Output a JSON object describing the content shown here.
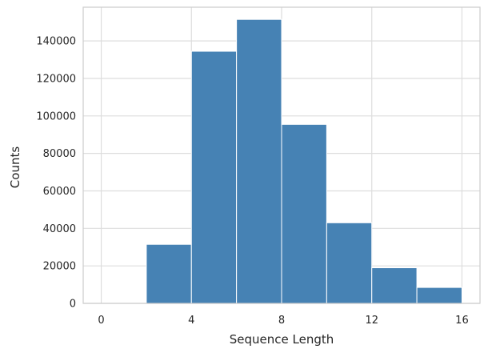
{
  "colors": {
    "bar_fill": "#4682b4",
    "bar_edge": "#ffffff",
    "grid": "#dddddd",
    "frame": "#cccccc",
    "text": "#262626",
    "background": "#ffffff"
  },
  "chart_data": {
    "type": "bar",
    "title": "",
    "xlabel": "Sequence Length",
    "ylabel": "Counts",
    "xlim": [
      -0.8,
      16.8
    ],
    "ylim": [
      0,
      158000
    ],
    "xticks": [
      0,
      4,
      8,
      12,
      16
    ],
    "yticks": [
      0,
      20000,
      40000,
      60000,
      80000,
      100000,
      120000,
      140000
    ],
    "grid": true,
    "legend": "none",
    "bins": [
      {
        "x0": 0,
        "x1": 2,
        "count": 0
      },
      {
        "x0": 2,
        "x1": 4,
        "count": 31500
      },
      {
        "x0": 4,
        "x1": 6,
        "count": 134500
      },
      {
        "x0": 6,
        "x1": 8,
        "count": 151500
      },
      {
        "x0": 8,
        "x1": 10,
        "count": 95500
      },
      {
        "x0": 10,
        "x1": 12,
        "count": 43000
      },
      {
        "x0": 12,
        "x1": 14,
        "count": 19000
      },
      {
        "x0": 14,
        "x1": 16,
        "count": 8500
      }
    ]
  }
}
